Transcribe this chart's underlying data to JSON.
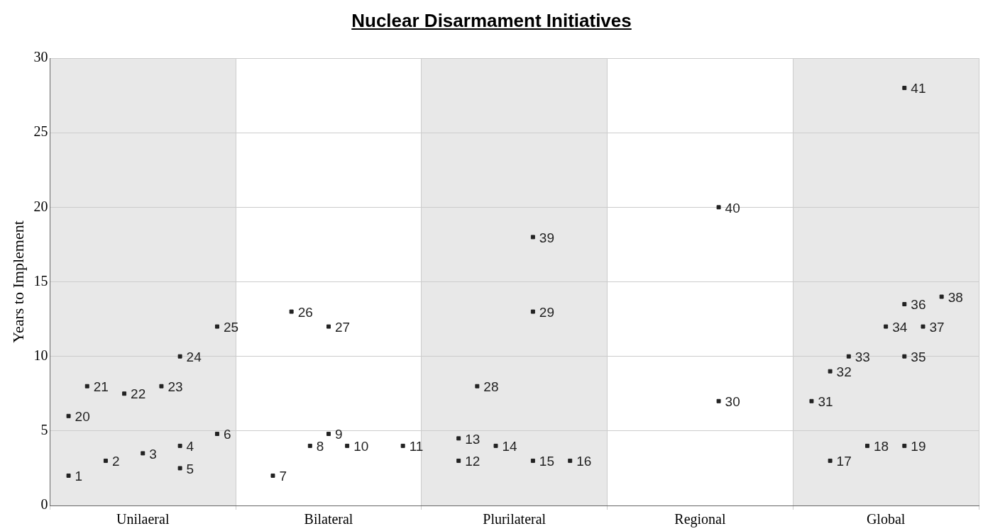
{
  "chart_data": {
    "type": "scatter",
    "title": "Nuclear Disarmament Initiatives",
    "ylabel": "Years to Implement",
    "categories": [
      "Unilaeral",
      "Bilateral",
      "Plurilateral",
      "Regional",
      "Global"
    ],
    "ylim": [
      0,
      30
    ],
    "yticks": [
      0,
      5,
      10,
      15,
      20,
      25,
      30
    ],
    "grid": true,
    "legend": false,
    "marker": "square",
    "bands": [
      {
        "axis": "x",
        "from": "Unilaeral",
        "to": "Unilaeral",
        "color": "#e8e8e8"
      },
      {
        "axis": "x",
        "from": "Plurilateral",
        "to": "Plurilateral",
        "color": "#e8e8e8"
      },
      {
        "axis": "x",
        "from": "Global",
        "to": "Global",
        "color": "#e8e8e8"
      }
    ],
    "series": [
      {
        "color": "#222222",
        "x": [
          "Unilaeral",
          "Unilaeral",
          "Global"
        ],
        "values": [
          2,
          6,
          7
        ]
      },
      {
        "color": "#222222",
        "x": [
          "Unilaeral",
          "Bilateral",
          "Plurilateral",
          "Plurilateral",
          "Global",
          "Global"
        ],
        "values": [
          8,
          2,
          3,
          4.5,
          3,
          9
        ]
      },
      {
        "color": "#222222",
        "x": [
          "Unilaeral",
          "Bilateral",
          "Plurilateral",
          "Global"
        ],
        "values": [
          3,
          13,
          8,
          10
        ]
      },
      {
        "color": "#222222",
        "x": [
          "Unilaeral",
          "Bilateral",
          "Plurilateral",
          "Global"
        ],
        "values": [
          7.5,
          4,
          4,
          4
        ]
      },
      {
        "color": "#222222",
        "x": [
          "Unilaeral",
          "Bilateral",
          "Bilateral",
          "Global"
        ],
        "values": [
          3.5,
          4.8,
          12,
          12
        ]
      },
      {
        "color": "#222222",
        "x": [
          "Unilaeral",
          "Bilateral",
          "Plurilateral",
          "Plurilateral",
          "Plurilateral",
          "Regional",
          "Regional",
          "Global",
          "Global",
          "Global",
          "Global"
        ],
        "values": [
          8,
          4,
          3,
          13,
          18,
          7,
          20,
          4,
          10,
          13.5,
          28
        ]
      },
      {
        "color": "#222222",
        "x": [
          "Unilaeral",
          "Unilaeral",
          "Unilaeral",
          "Global"
        ],
        "values": [
          4,
          2.5,
          10,
          12
        ]
      },
      {
        "color": "#222222",
        "x": [
          "Plurilateral",
          "Global"
        ],
        "values": [
          3,
          14
        ]
      },
      {
        "color": "#222222",
        "x": [
          "Unilaeral",
          "Unilaeral",
          "Bilateral"
        ],
        "values": [
          4.8,
          12,
          4
        ]
      }
    ],
    "annotations": [
      "1",
      "20",
      "31",
      "21",
      "7",
      "12",
      "13",
      "17",
      "32",
      "2",
      "26",
      "28",
      "33",
      "22",
      "8",
      "14",
      "18",
      "3",
      "9",
      "27",
      "34",
      "23",
      "10",
      "15",
      "29",
      "39",
      "30",
      "40",
      "19",
      "35",
      "36",
      "41",
      "4",
      "5",
      "24",
      "37",
      "16",
      "38",
      "6",
      "25",
      "11"
    ]
  }
}
